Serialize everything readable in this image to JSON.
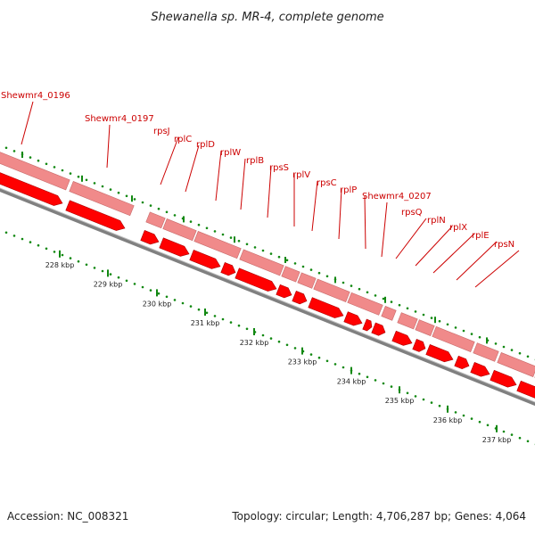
{
  "title": "Shewanella sp. MR-4, complete genome",
  "footer": {
    "accession": "Accession: NC_008321",
    "summary": "Topology: circular; Length: 4,706,287 bp; Genes: 4,064"
  },
  "colors": {
    "gene_label": "#cc0000",
    "feature_light": "#f08a8a",
    "feature_strong": "#ff0000",
    "backbone": "#808080",
    "ticks": "#118811"
  },
  "axis_ticks": [
    "228 kbp",
    "229 kbp",
    "230 kbp",
    "231 kbp",
    "232 kbp",
    "233 kbp",
    "234 kbp",
    "235 kbp",
    "236 kbp",
    "237 kbp"
  ],
  "genes": [
    "Shewmr4_0196",
    "Shewmr4_0197",
    "rpsJ",
    "rplC",
    "rplD",
    "rplW",
    "rplB",
    "rpsS",
    "rplV",
    "rpsC",
    "rplP",
    "Shewmr4_0207",
    "rpsQ",
    "rplN",
    "rplX",
    "rplE",
    "rpsN"
  ]
}
